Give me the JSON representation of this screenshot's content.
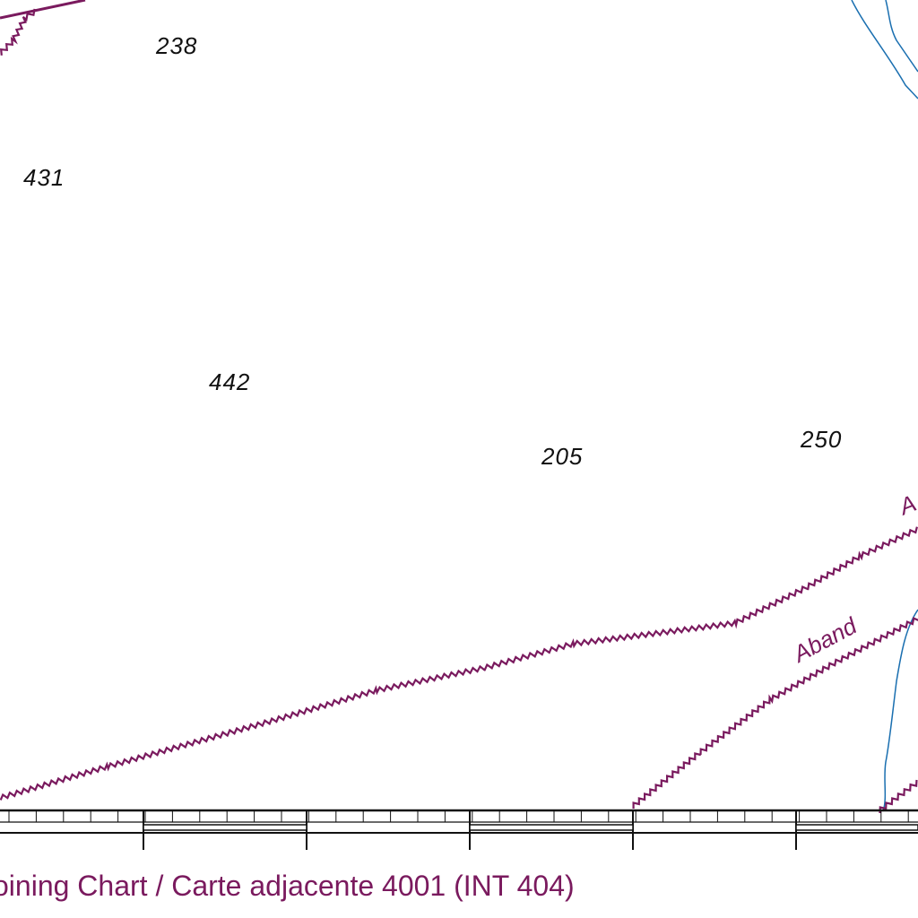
{
  "map": {
    "colors": {
      "cable": "#7a1a5e",
      "contour": "#1a6fb0",
      "border": "#111111",
      "soundings": "#111111"
    },
    "soundings": [
      "238",
      "431",
      "442",
      "205",
      "250"
    ],
    "labels": {
      "aband_lower": "Aband",
      "aband_upper_partial": "A"
    },
    "adjoining_chart": "oining Chart / Carte adjacente 4001 (INT 404)"
  }
}
